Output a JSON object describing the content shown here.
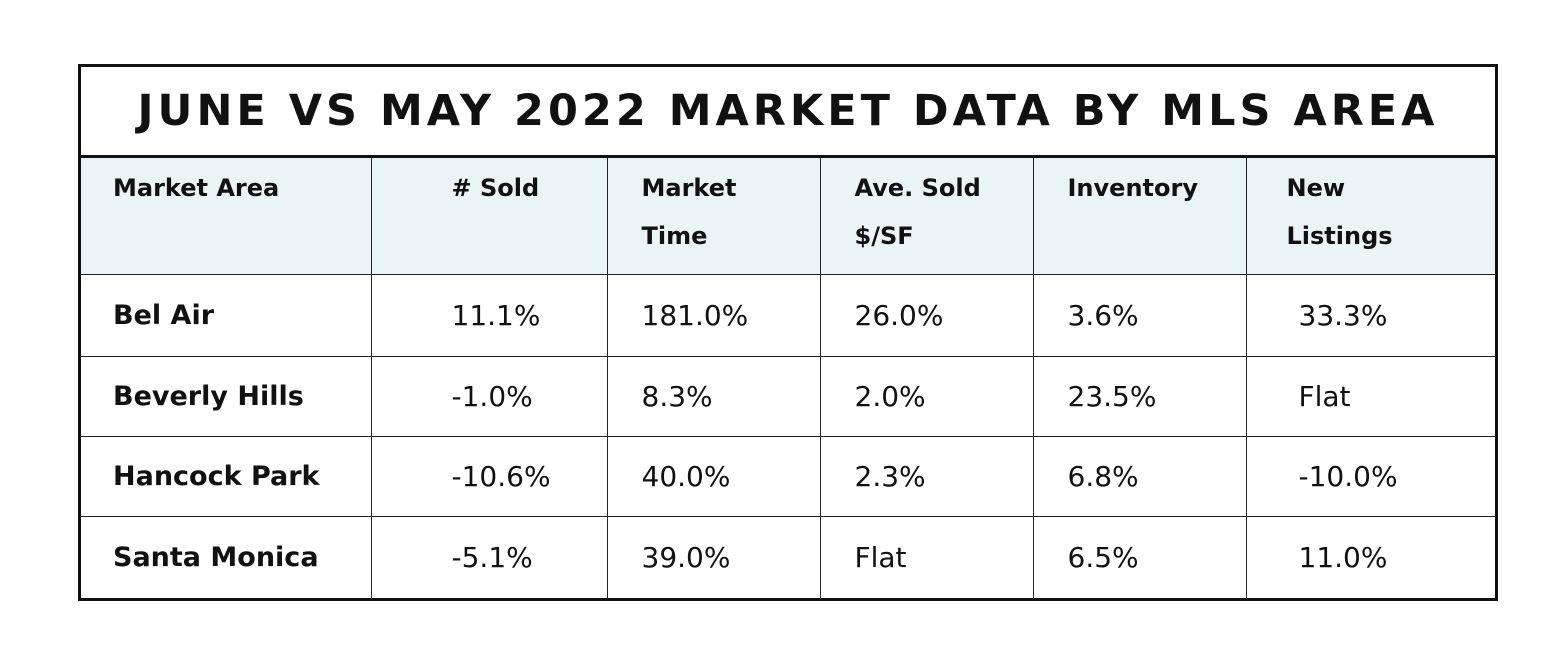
{
  "title": "JUNE VS MAY 2022 MARKET DATA BY MLS AREA",
  "columns": [
    "Market Area",
    "# Sold",
    "Market Time",
    "Ave. Sold $/SF",
    "Inventory",
    "New Listings"
  ],
  "header_lines": {
    "market_area": [
      "Market Area"
    ],
    "sold": [
      "# Sold"
    ],
    "market_time": [
      "Market",
      "Time"
    ],
    "ave_sold": [
      "Ave. Sold",
      "$/SF"
    ],
    "inventory": [
      "Inventory"
    ],
    "new_listings": [
      "New",
      "Listings"
    ]
  },
  "rows": [
    {
      "area": "Bel Air",
      "sold": "11.1%",
      "market_time": "181.0%",
      "ave_sold": "26.0%",
      "inventory": "3.6%",
      "new_listings": "33.3%"
    },
    {
      "area": "Beverly Hills",
      "sold": "-1.0%",
      "market_time": "8.3%",
      "ave_sold": "2.0%",
      "inventory": "23.5%",
      "new_listings": "Flat"
    },
    {
      "area": "Hancock Park",
      "sold": "-10.6%",
      "market_time": "40.0%",
      "ave_sold": "2.3%",
      "inventory": "6.8%",
      "new_listings": "-10.0%"
    },
    {
      "area": "Santa Monica",
      "sold": "-5.1%",
      "market_time": "39.0%",
      "ave_sold": "Flat",
      "inventory": "6.5%",
      "new_listings": "11.0%"
    }
  ],
  "colors": {
    "header_bg": "#eaf4f7",
    "border": "#111111",
    "text": "#111111"
  }
}
